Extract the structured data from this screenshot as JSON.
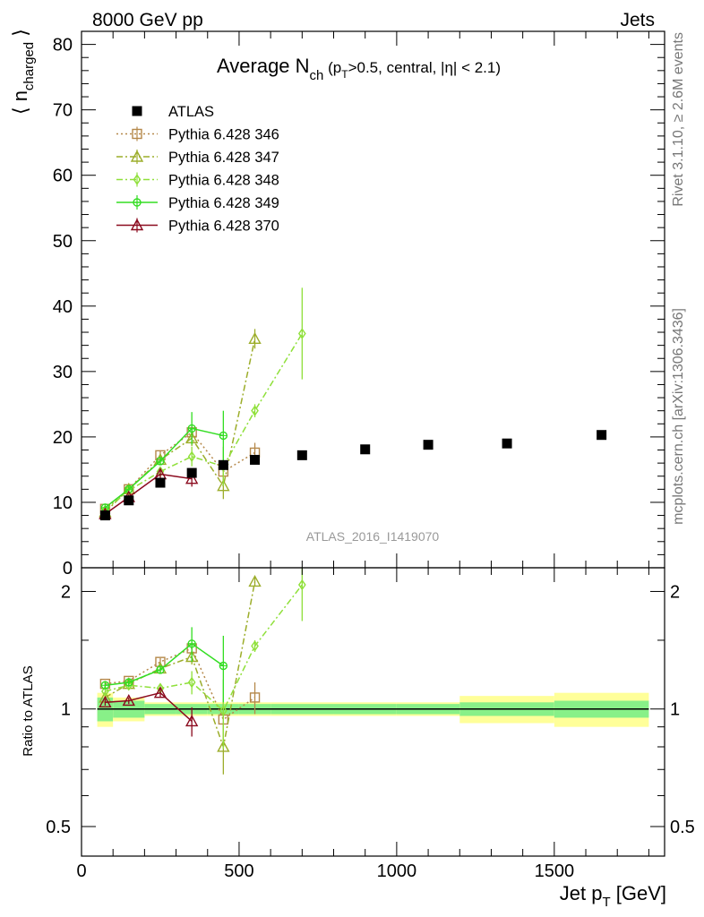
{
  "header": {
    "left": "8000 GeV pp",
    "right": "Jets"
  },
  "title": {
    "main": "Average N",
    "main_sub": "ch",
    "cond_open": " (p",
    "cond_sub": "T",
    "cond_rest": ">0.5, central, |η| < 2.1)"
  },
  "side_text": {
    "rivet": "Rivet 3.1.10, ≥ 2.6M events",
    "mcplots": "mcplots.cern.ch [arXiv:1306.3436]"
  },
  "analysis_label": "ATLAS_2016_I1419070",
  "colors": {
    "ATLAS": "#000000",
    "Pythia 6.428 346": "#b5884a",
    "Pythia 6.428 347": "#9cad2a",
    "Pythia 6.428 348": "#8fe03a",
    "Pythia 6.428 349": "#33dd22",
    "Pythia 6.428 370": "#8b0a1e",
    "band_inner": "#88f088",
    "band_outer": "#ffff99"
  },
  "chart_data": [
    {
      "type": "scatter",
      "panel": "main",
      "ylabel": "⟨ n",
      "ylabel_sub": "charged",
      "ylabel_close": " ⟩",
      "xlim": [
        0,
        1850
      ],
      "ylim": [
        0,
        82
      ],
      "yticks": [
        0,
        10,
        20,
        30,
        40,
        50,
        60,
        70,
        80
      ],
      "legend_position": "top-left",
      "series": [
        {
          "name": "ATLAS",
          "marker": "square-filled",
          "x": [
            75,
            150,
            250,
            350,
            450,
            550,
            700,
            900,
            1100,
            1350,
            1650
          ],
          "y": [
            8.0,
            10.3,
            13.0,
            14.5,
            15.7,
            16.5,
            17.2,
            18.1,
            18.8,
            19.0,
            20.3
          ]
        },
        {
          "name": "Pythia 6.428 346",
          "marker": "square-open",
          "line": "dotted",
          "x": [
            75,
            150,
            250,
            350,
            450,
            550
          ],
          "y": [
            9.0,
            12.0,
            17.2,
            20.7,
            14.7,
            17.6
          ],
          "err": [
            0.3,
            0.4,
            0.6,
            1.0,
            1.5,
            1.5
          ]
        },
        {
          "name": "Pythia 6.428 347",
          "marker": "triangle-open",
          "line": "dashdot",
          "x": [
            75,
            150,
            250,
            350,
            450,
            550
          ],
          "y": [
            8.5,
            12.0,
            16.5,
            19.8,
            12.5,
            35.0
          ],
          "err": [
            0.3,
            0.4,
            0.6,
            1.2,
            2.0,
            1.5
          ]
        },
        {
          "name": "Pythia 6.428 348",
          "marker": "diamond-open",
          "line": "dashdot",
          "x": [
            75,
            150,
            250,
            350,
            450,
            550,
            700
          ],
          "y": [
            8.8,
            11.8,
            14.7,
            17.0,
            15.5,
            24.0,
            35.8
          ],
          "err": [
            0.3,
            0.4,
            0.6,
            1.5,
            3.0,
            1.0,
            7.0
          ]
        },
        {
          "name": "Pythia 6.428 349",
          "marker": "circle-cross",
          "line": "solid",
          "x": [
            75,
            150,
            250,
            350,
            450
          ],
          "y": [
            9.2,
            12.0,
            16.3,
            21.3,
            20.2
          ],
          "err": [
            0.3,
            0.4,
            0.6,
            2.5,
            3.8
          ]
        },
        {
          "name": "Pythia 6.428 370",
          "marker": "triangle-open",
          "line": "solid",
          "x": [
            75,
            150,
            250,
            350
          ],
          "y": [
            8.2,
            10.8,
            14.3,
            13.6
          ],
          "err": [
            0.3,
            0.4,
            0.6,
            1.2
          ]
        }
      ]
    },
    {
      "type": "scatter",
      "panel": "ratio",
      "ylabel": "Ratio to ATLAS",
      "xlabel": "Jet p",
      "xlabel_sub": "T",
      "xlabel_unit": " [GeV]",
      "xlim": [
        0,
        1850
      ],
      "ylim": [
        0.42,
        2.3
      ],
      "yscale": "log",
      "yticks": [
        0.5,
        1,
        2
      ],
      "ytick_labels": [
        "0.5",
        "1",
        "2"
      ],
      "xticks": [
        0,
        500,
        1000,
        1500
      ],
      "xtick_labels": [
        "0",
        "500",
        "1000",
        "1500"
      ],
      "reference_band": {
        "x_edges": [
          50,
          100,
          200,
          300,
          400,
          500,
          600,
          800,
          1000,
          1200,
          1500,
          1800
        ],
        "inner": [
          0.07,
          0.05,
          0.03,
          0.03,
          0.03,
          0.03,
          0.03,
          0.03,
          0.03,
          0.04,
          0.05
        ],
        "outer": [
          0.1,
          0.07,
          0.04,
          0.04,
          0.04,
          0.04,
          0.04,
          0.04,
          0.04,
          0.08,
          0.1
        ]
      },
      "series": [
        {
          "name": "Pythia 6.428 346",
          "x": [
            75,
            150,
            250,
            350,
            450,
            550
          ],
          "y": [
            1.16,
            1.18,
            1.32,
            1.43,
            0.94,
            1.07
          ],
          "err": [
            0.02,
            0.02,
            0.03,
            0.05,
            0.12,
            0.1
          ]
        },
        {
          "name": "Pythia 6.428 347",
          "x": [
            75,
            150,
            250,
            350,
            450,
            550
          ],
          "y": [
            1.07,
            1.16,
            1.27,
            1.36,
            0.8,
            2.12
          ],
          "err": [
            0.02,
            0.02,
            0.03,
            0.06,
            0.12,
            0.06
          ]
        },
        {
          "name": "Pythia 6.428 348",
          "x": [
            75,
            150,
            250,
            350,
            450,
            550,
            700
          ],
          "y": [
            1.11,
            1.15,
            1.13,
            1.17,
            0.99,
            1.45,
            2.08
          ],
          "err": [
            0.02,
            0.02,
            0.03,
            0.08,
            0.2,
            0.05,
            0.4
          ]
        },
        {
          "name": "Pythia 6.428 349",
          "x": [
            75,
            150,
            250,
            350,
            450
          ],
          "y": [
            1.15,
            1.17,
            1.26,
            1.47,
            1.29
          ],
          "err": [
            0.02,
            0.02,
            0.03,
            0.15,
            0.25
          ]
        },
        {
          "name": "Pythia 6.428 370",
          "x": [
            75,
            150,
            250,
            350
          ],
          "y": [
            1.04,
            1.05,
            1.1,
            0.93
          ],
          "err": [
            0.02,
            0.02,
            0.03,
            0.08
          ]
        }
      ]
    }
  ]
}
